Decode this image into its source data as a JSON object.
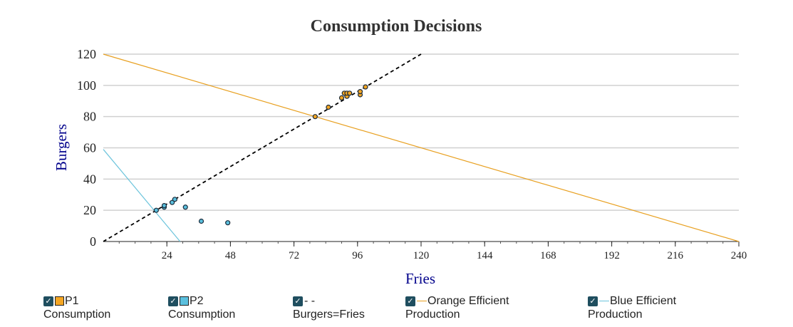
{
  "chart_data": {
    "type": "scatter",
    "title": "Consumption Decisions",
    "xlabel": "Fries",
    "ylabel": "Burgers",
    "xlim": [
      0,
      240
    ],
    "ylim": [
      0,
      120
    ],
    "x_ticks": [
      24,
      48,
      72,
      96,
      120,
      144,
      168,
      192,
      216,
      240
    ],
    "y_ticks": [
      0,
      20,
      40,
      60,
      80,
      100,
      120
    ],
    "grid": true,
    "series": [
      {
        "name": "P1 Consumption",
        "color": "#f5a623",
        "points": [
          [
            80,
            80
          ],
          [
            85,
            86
          ],
          [
            90,
            92
          ],
          [
            91,
            95
          ],
          [
            92,
            93
          ],
          [
            92,
            95
          ],
          [
            93,
            95
          ],
          [
            97,
            94
          ],
          [
            97,
            96
          ],
          [
            99,
            99
          ]
        ]
      },
      {
        "name": "P2 Consumption",
        "color": "#5bc0de",
        "points": [
          [
            20,
            20
          ],
          [
            23,
            22
          ],
          [
            23,
            23
          ],
          [
            26,
            25
          ],
          [
            27,
            27
          ],
          [
            31,
            22
          ],
          [
            37,
            13
          ],
          [
            47,
            12
          ]
        ]
      }
    ],
    "lines": [
      {
        "name": "Burgers=Fries",
        "color": "#000000",
        "style": "dashed",
        "from": [
          0,
          0
        ],
        "to": [
          120,
          120
        ]
      },
      {
        "name": "Orange Efficient Production",
        "color": "#e8a020",
        "style": "solid",
        "from": [
          0,
          120
        ],
        "to": [
          240,
          0
        ]
      },
      {
        "name": "Blue Efficient Production",
        "color": "#6cc4dc",
        "style": "solid",
        "from": [
          0,
          59
        ],
        "to": [
          29,
          0
        ]
      }
    ]
  },
  "legend": [
    {
      "check": "✓",
      "label_line1": "P1",
      "label_line2": "Consumption",
      "kind": "swatch",
      "color": "#f5a623"
    },
    {
      "check": "✓",
      "label_line1": "P2",
      "label_line2": "Consumption",
      "kind": "swatch",
      "color": "#5bc0de"
    },
    {
      "check": "✓",
      "label_line1": "- -",
      "label_line2": "Burgers=Fries",
      "kind": "text"
    },
    {
      "check": "✓",
      "label_line1": "Orange Efficient",
      "label_line2": "Production",
      "kind": "line",
      "color": "#e8a020"
    },
    {
      "check": "✓",
      "label_line1": "Blue Efficient",
      "label_line2": "Production",
      "kind": "line",
      "color": "#6cc4dc"
    }
  ]
}
